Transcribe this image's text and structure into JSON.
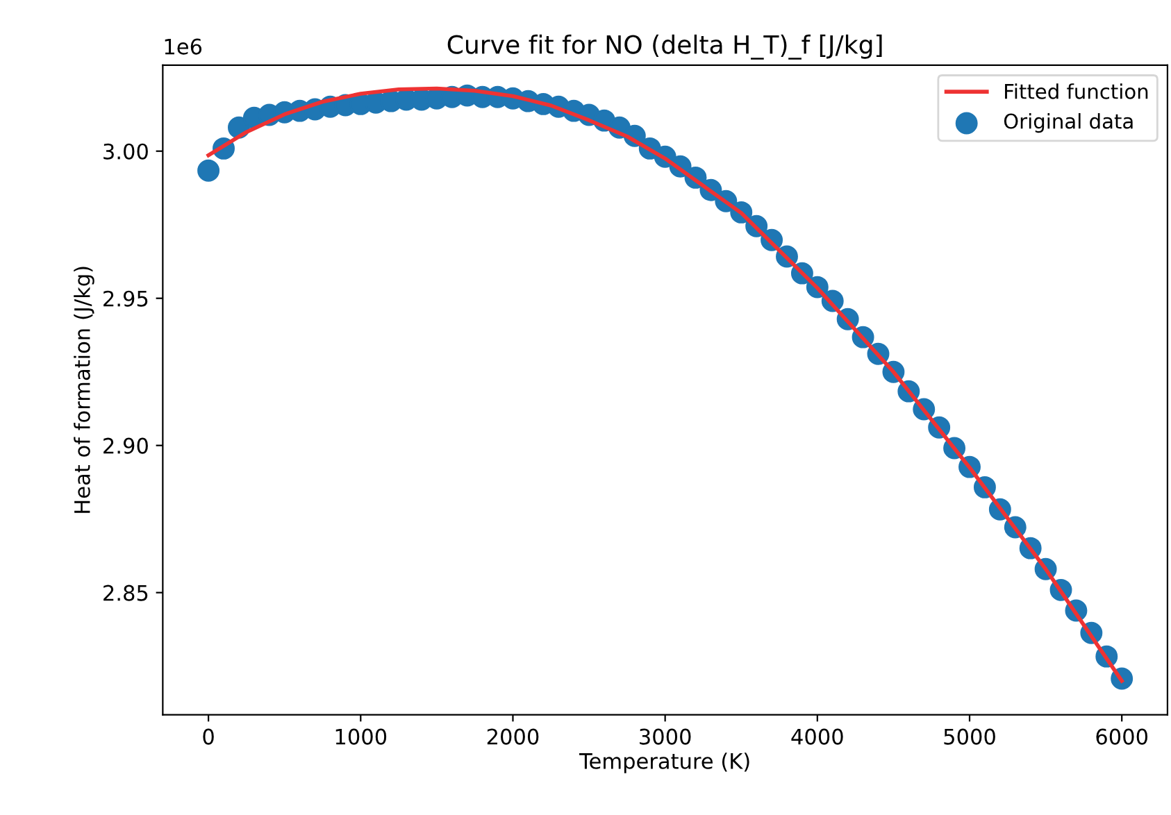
{
  "chart_data": {
    "type": "scatter",
    "title": "Curve fit for NO (delta H_T)_f [J/kg]",
    "xlabel": "Temperature (K)",
    "ylabel": "Heat of formation (J/kg)",
    "annotations": [
      "1e6"
    ],
    "series": [
      {
        "name": "Fitted function",
        "type": "line",
        "color": "#ee3333",
        "x": [
          0,
          250,
          500,
          750,
          1000,
          1250,
          1500,
          1750,
          2000,
          2250,
          2500,
          2750,
          3000,
          3500,
          4000,
          4500,
          5000,
          5500,
          6000
        ],
        "values": [
          2.9986,
          3.0065,
          3.0125,
          3.0168,
          3.0195,
          3.021,
          3.0213,
          3.0205,
          3.0187,
          3.0155,
          3.0105,
          3.005,
          2.9975,
          2.979,
          2.9535,
          2.925,
          2.8925,
          2.858,
          2.82
        ]
      },
      {
        "name": "Original data",
        "marker": "circle",
        "color": "#1f77b4",
        "x": [
          0,
          100,
          200,
          300,
          400,
          500,
          600,
          700,
          800,
          900,
          1000,
          1100,
          1200,
          1300,
          1400,
          1500,
          1600,
          1700,
          1800,
          1900,
          2000,
          2100,
          2200,
          2300,
          2400,
          2500,
          2600,
          2700,
          2800,
          2900,
          3000,
          3100,
          3200,
          3300,
          3400,
          3500,
          3600,
          3700,
          3800,
          3900,
          4000,
          4100,
          4200,
          4300,
          4400,
          4500,
          4600,
          4700,
          4800,
          4900,
          5000,
          5100,
          5200,
          5300,
          5400,
          5500,
          5600,
          5700,
          5800,
          5900,
          6000
        ],
        "values": [
          2.9934,
          3.0009,
          3.008,
          3.0113,
          3.0123,
          3.0132,
          3.0137,
          3.0142,
          3.0151,
          3.0156,
          3.016,
          3.0165,
          3.017,
          3.0175,
          3.0175,
          3.0179,
          3.0184,
          3.0189,
          3.0184,
          3.0184,
          3.0179,
          3.017,
          3.016,
          3.0151,
          3.0137,
          3.0123,
          3.0104,
          3.008,
          3.0052,
          3.0009,
          2.9981,
          2.9948,
          2.991,
          2.9868,
          2.983,
          2.9792,
          2.9745,
          2.9698,
          2.9642,
          2.9585,
          2.9538,
          2.9491,
          2.9429,
          2.9368,
          2.9311,
          2.925,
          2.9184,
          2.9123,
          2.9061,
          2.8991,
          2.8927,
          2.8858,
          2.8783,
          2.8722,
          2.8651,
          2.858,
          2.8509,
          2.8439,
          2.8363,
          2.8283,
          2.8208
        ]
      }
    ],
    "xlim": [
      -300,
      6300
    ],
    "xticks": [
      0,
      1000,
      2000,
      3000,
      4000,
      5000,
      6000
    ],
    "ylim": [
      2.8085,
      3.0292
    ],
    "yticks": [
      {
        "value": 2.85,
        "label": "2.85"
      },
      {
        "value": 2.9,
        "label": "2.90"
      },
      {
        "value": 2.95,
        "label": "2.95"
      },
      {
        "value": 3.0,
        "label": "3.00"
      }
    ],
    "legend": "top right",
    "grid": false
  }
}
